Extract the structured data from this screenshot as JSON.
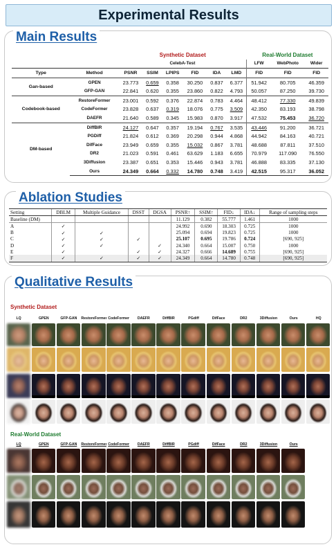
{
  "page_title": "Experimental Results",
  "main": {
    "title": "Main Results",
    "synthetic_header": "Synthetic Dataset",
    "celeba_header": "CelebA-Test",
    "realworld_header": "Real-World Dataset",
    "columns": [
      "Type",
      "Method",
      "PSNR",
      "SSIM",
      "LPIPS",
      "FID",
      "IDA",
      "LMD",
      "FID",
      "FID",
      "FID"
    ],
    "real_subheaders": [
      "LFW",
      "WebPhoto",
      "Wider"
    ],
    "groups": [
      {
        "type": "Gan-based",
        "rows": [
          {
            "method": "GPEN",
            "vals": [
              "23.773",
              "0.659",
              "0.358",
              "30.250",
              "0.837",
              "6.377",
              "51.942",
              "80.705",
              "46.359"
            ]
          },
          {
            "method": "GFP-GAN",
            "vals": [
              "22.841",
              "0.620",
              "0.355",
              "23.860",
              "0.822",
              "4.793",
              "50.057",
              "87.250",
              "39.730"
            ]
          }
        ]
      },
      {
        "type": "Codebook-based",
        "rows": [
          {
            "method": "RestoreFormer",
            "vals": [
              "23.001",
              "0.592",
              "0.376",
              "22.874",
              "0.783",
              "4.464",
              "48.412",
              "77.330",
              "49.839"
            ]
          },
          {
            "method": "CodeFormer",
            "vals": [
              "23.828",
              "0.637",
              "0.319",
              "18.076",
              "0.775",
              "3.509",
              "42.350",
              "83.193",
              "38.798"
            ]
          },
          {
            "method": "DAEFR",
            "vals": [
              "21.640",
              "0.589",
              "0.345",
              "15.983",
              "0.870",
              "3.917",
              "47.532",
              "75.453",
              "36.720"
            ]
          }
        ]
      },
      {
        "type": "DM-based",
        "rows": [
          {
            "method": "DiffBIR",
            "vals": [
              "24.127",
              "0.647",
              "0.357",
              "19.194",
              "0.767",
              "3.535",
              "43.446",
              "91.200",
              "36.721"
            ]
          },
          {
            "method": "PGDiff",
            "vals": [
              "21.824",
              "0.612",
              "0.369",
              "20.298",
              "0.944",
              "4.868",
              "44.942",
              "84.163",
              "40.721"
            ]
          },
          {
            "method": "DifFace",
            "vals": [
              "23.949",
              "0.659",
              "0.355",
              "15.032",
              "0.867",
              "3.781",
              "48.688",
              "87.811",
              "37.510"
            ]
          },
          {
            "method": "DR2",
            "vals": [
              "21.023",
              "0.591",
              "0.461",
              "63.629",
              "1.183",
              "6.655",
              "70.979",
              "117.090",
              "76.550"
            ]
          },
          {
            "method": "3Diffusion",
            "vals": [
              "23.387",
              "0.651",
              "0.353",
              "15.446",
              "0.943",
              "3.781",
              "46.888",
              "83.335",
              "37.130"
            ]
          },
          {
            "method": "Ours",
            "vals": [
              "24.349",
              "0.664",
              "0.332",
              "14.780",
              "0.748",
              "3.419",
              "42.515",
              "95.317",
              "36.052"
            ]
          }
        ]
      }
    ]
  },
  "ablation": {
    "title": "Ablation Studies",
    "headers": [
      "Setting",
      "DBLM",
      "Multiple Guidance",
      "DSST",
      "DGSA",
      "PSNR↑",
      "SSIM↑",
      "FID↓",
      "IDA↓",
      "Range of sampling steps"
    ],
    "check": "✓",
    "rows": [
      {
        "setting": "Baseline (DM)",
        "marks": [
          "",
          "",
          "",
          ""
        ],
        "vals": [
          "11.129",
          "0.382",
          "55.777",
          "1.461",
          "1000"
        ]
      },
      {
        "setting": "A",
        "marks": [
          "✓",
          "",
          "",
          ""
        ],
        "vals": [
          "24.992",
          "0.690",
          "18.303",
          "0.725",
          "1000"
        ]
      },
      {
        "setting": "B",
        "marks": [
          "✓",
          "✓",
          "",
          ""
        ],
        "vals": [
          "25.094",
          "0.694",
          "19.823",
          "0.725",
          "1000"
        ]
      },
      {
        "setting": "C",
        "marks": [
          "✓",
          "✓",
          "✓",
          ""
        ],
        "vals": [
          "25.107",
          "0.695",
          "19.786",
          "0.724",
          "[690, 925]"
        ]
      },
      {
        "setting": "D",
        "marks": [
          "✓",
          "✓",
          "",
          "✓"
        ],
        "vals": [
          "24.340",
          "0.664",
          "15.007",
          "0.750",
          "1000"
        ]
      },
      {
        "setting": "E",
        "marks": [
          "✓",
          "",
          "✓",
          "✓"
        ],
        "vals": [
          "24.327",
          "0.666",
          "14.689",
          "0.755",
          "[690, 925]"
        ]
      },
      {
        "setting": "F",
        "marks": [
          "✓",
          "✓",
          "✓",
          "✓"
        ],
        "vals": [
          "24.349",
          "0.664",
          "14.780",
          "0.748",
          "[690, 925]"
        ]
      }
    ]
  },
  "qualitative": {
    "title": "Qualitative Results",
    "synthetic_label": "Synthetic Dataset",
    "real_label": "Real-World Dataset",
    "synthetic_columns": [
      "LQ",
      "GPEN",
      "GFP-GAN",
      "RestoreFormer",
      "CodeFormer",
      "DAEFR",
      "DiffBIR",
      "PGdiff",
      "DifFace",
      "DR2",
      "3Diffusion",
      "Ours",
      "HQ"
    ],
    "real_columns": [
      "LQ",
      "GPEN",
      "GFP-GAN",
      "RestoreFormer",
      "CodeFormer",
      "DAEFR",
      "DiffBIR",
      "PGdiff",
      "DifFace",
      "DR2",
      "3Diffusion",
      "Ours"
    ]
  }
}
